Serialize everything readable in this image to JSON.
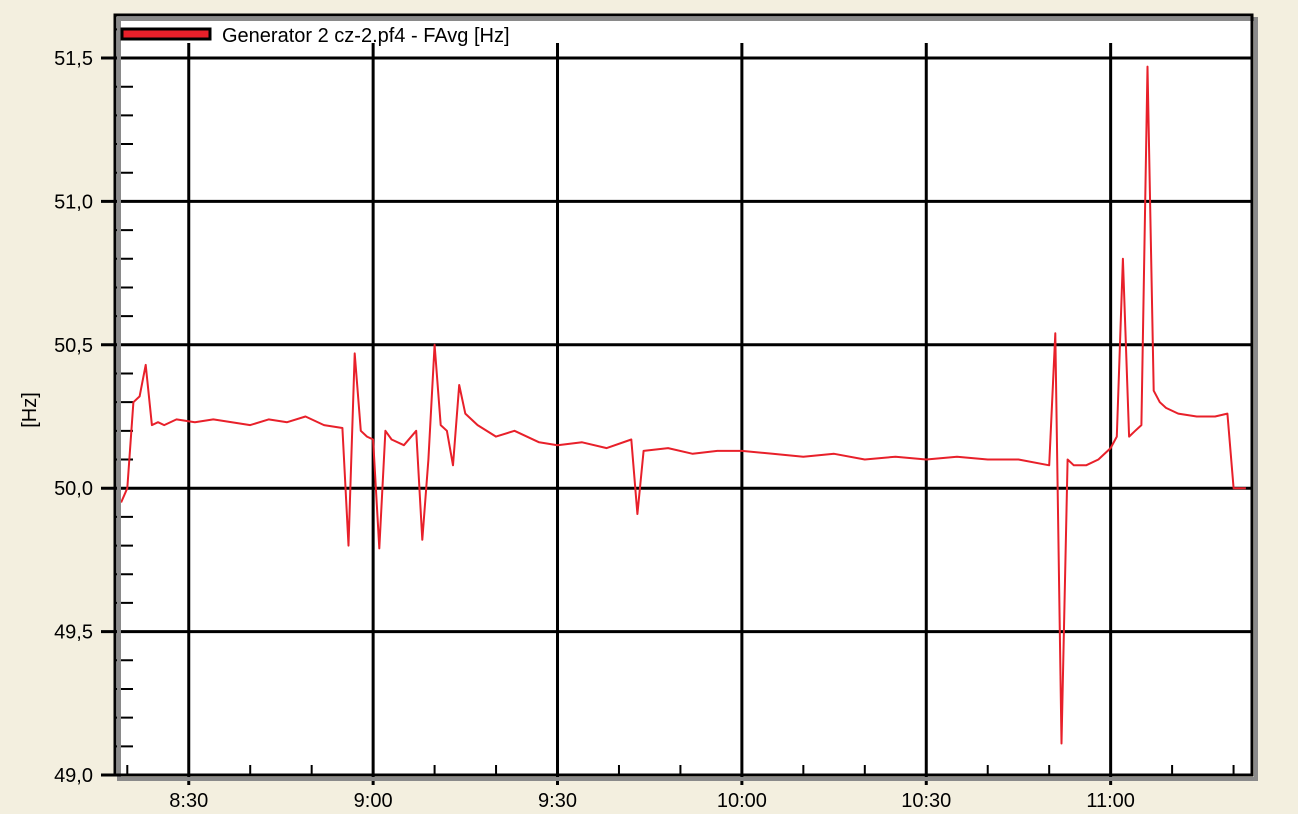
{
  "chart_data": {
    "type": "line",
    "title": "",
    "xlabel": "",
    "ylabel": "[Hz]",
    "legend": {
      "position": "top-left",
      "entries": [
        {
          "label": "Generator 2 cz-2.pf4 - FAvg [Hz]",
          "color": "#e8202a"
        }
      ]
    },
    "grid": true,
    "x_unit": "time of day",
    "xlim": [
      "8:18",
      "11:23"
    ],
    "x_ticks": [
      "8:30",
      "9:00",
      "9:30",
      "10:00",
      "10:30",
      "11:00"
    ],
    "ylim": [
      49.0,
      51.65
    ],
    "y_ticks": [
      "49,0",
      "49,5",
      "50,0",
      "50,5",
      "51,0",
      "51,5"
    ],
    "y_tick_values": [
      49.0,
      49.5,
      50.0,
      50.5,
      51.0,
      51.5
    ],
    "background": "#ffffff",
    "frame_color": "#f3efdf",
    "series": [
      {
        "name": "Generator 2 cz-2.pf4 - FAvg [Hz]",
        "color": "#e8202a",
        "x": [
          "8:19",
          "8:20",
          "8:21",
          "8:22",
          "8:23",
          "8:24",
          "8:25",
          "8:26",
          "8:28",
          "8:31",
          "8:34",
          "8:37",
          "8:40",
          "8:43",
          "8:46",
          "8:49",
          "8:52",
          "8:55",
          "8:56",
          "8:57",
          "8:58",
          "8:59",
          "9:00",
          "9:01",
          "9:02",
          "9:03",
          "9:05",
          "9:07",
          "9:08",
          "9:09",
          "9:10",
          "9:11",
          "9:12",
          "9:13",
          "9:14",
          "9:15",
          "9:17",
          "9:20",
          "9:23",
          "9:27",
          "9:30",
          "9:34",
          "9:38",
          "9:42",
          "9:43",
          "9:44",
          "9:48",
          "9:52",
          "9:56",
          "10:00",
          "10:05",
          "10:10",
          "10:15",
          "10:20",
          "10:25",
          "10:30",
          "10:35",
          "10:40",
          "10:45",
          "10:50",
          "10:51",
          "10:52",
          "10:53",
          "10:54",
          "10:56",
          "10:58",
          "11:00",
          "11:01",
          "11:02",
          "11:03",
          "11:04",
          "11:05",
          "11:06",
          "11:07",
          "11:08",
          "11:09",
          "11:11",
          "11:14",
          "11:17",
          "11:19",
          "11:20",
          "11:21",
          "11:22"
        ],
        "values": [
          49.95,
          50.0,
          50.3,
          50.32,
          50.43,
          50.22,
          50.23,
          50.22,
          50.24,
          50.23,
          50.24,
          50.23,
          50.22,
          50.24,
          50.23,
          50.25,
          50.22,
          50.21,
          49.8,
          50.47,
          50.2,
          50.18,
          50.17,
          49.79,
          50.2,
          50.17,
          50.15,
          50.2,
          49.82,
          50.1,
          50.5,
          50.22,
          50.2,
          50.08,
          50.36,
          50.26,
          50.22,
          50.18,
          50.2,
          50.16,
          50.15,
          50.16,
          50.14,
          50.17,
          49.91,
          50.13,
          50.14,
          50.12,
          50.13,
          50.13,
          50.12,
          50.11,
          50.12,
          50.1,
          50.11,
          50.1,
          50.11,
          50.1,
          50.1,
          50.08,
          50.54,
          49.11,
          50.1,
          50.08,
          50.08,
          50.1,
          50.14,
          50.18,
          50.8,
          50.18,
          50.2,
          50.22,
          51.47,
          50.34,
          50.3,
          50.28,
          50.26,
          50.25,
          50.25,
          50.26,
          50.0,
          50.0,
          50.0
        ]
      }
    ]
  }
}
